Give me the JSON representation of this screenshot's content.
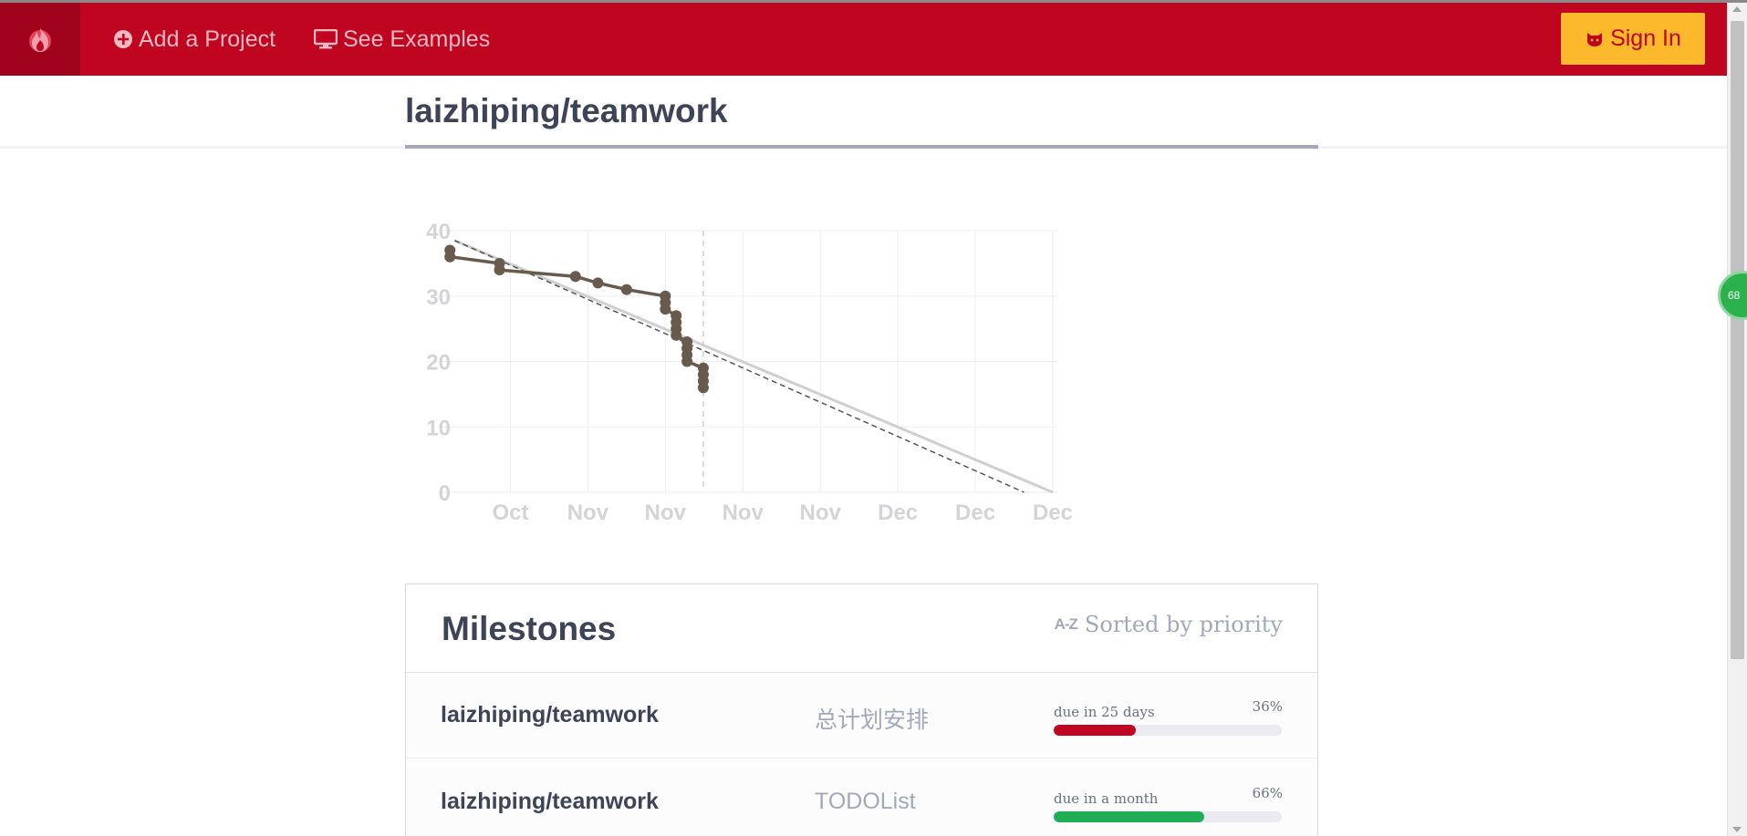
{
  "header": {
    "logo_icon": "flame-icon",
    "add_project_label": "Add a Project",
    "add_project_icon": "plus-circle-icon",
    "see_examples_label": "See Examples",
    "see_examples_icon": "monitor-icon",
    "sign_in_label": "Sign In",
    "sign_in_icon": "github-octocat-icon",
    "colors": {
      "bar": "#c00520",
      "logo_box": "#a0031b",
      "sign_in": "#fdb92c"
    }
  },
  "floating_badge": {
    "label": "68",
    "color": "#2bb24c"
  },
  "page_title": "laizhiping/teamwork",
  "chart_data": {
    "type": "line",
    "title": "",
    "xlabel": "",
    "ylabel": "",
    "ylim": [
      0,
      40
    ],
    "yticks": [
      0,
      10,
      20,
      30,
      40
    ],
    "xlim": [
      -0.7,
      7.0
    ],
    "xticks": [
      {
        "x": 0,
        "label": "Oct"
      },
      {
        "x": 1,
        "label": "Nov"
      },
      {
        "x": 2,
        "label": "Nov"
      },
      {
        "x": 3,
        "label": "Nov"
      },
      {
        "x": 4,
        "label": "Nov"
      },
      {
        "x": 5,
        "label": "Dec"
      },
      {
        "x": 6,
        "label": "Dec"
      },
      {
        "x": 7,
        "label": "Dec"
      }
    ],
    "grid": true,
    "today_x": 2.49,
    "series": [
      {
        "role": "actual",
        "color": "#685a4c",
        "points": [
          [
            -0.78,
            37
          ],
          [
            -0.78,
            36
          ],
          [
            -0.14,
            35
          ],
          [
            -0.14,
            34
          ],
          [
            0.84,
            33
          ],
          [
            1.13,
            32
          ],
          [
            1.5,
            31
          ],
          [
            2.0,
            30
          ],
          [
            2.0,
            29
          ],
          [
            2.0,
            28
          ],
          [
            2.14,
            27
          ],
          [
            2.14,
            26
          ],
          [
            2.14,
            25
          ],
          [
            2.14,
            24
          ],
          [
            2.28,
            23
          ],
          [
            2.28,
            22
          ],
          [
            2.28,
            21
          ],
          [
            2.28,
            20
          ],
          [
            2.49,
            19
          ],
          [
            2.49,
            18
          ],
          [
            2.49,
            17
          ],
          [
            2.49,
            16
          ]
        ]
      },
      {
        "role": "ideal",
        "color": "#cfcfcf",
        "points": [
          [
            -0.72,
            38.5
          ],
          [
            7.0,
            0
          ]
        ]
      },
      {
        "role": "projection",
        "color": "#555555",
        "dashed": true,
        "points": [
          [
            -0.72,
            38.5
          ],
          [
            6.63,
            0
          ]
        ]
      }
    ]
  },
  "milestones": {
    "title": "Milestones",
    "sort_icon": "a-z-sort-icon",
    "sort_icon_text": "A-Z",
    "sort_label": "Sorted by priority",
    "rows": [
      {
        "owner": "laizhiping/teamwork",
        "name": "总计划安排",
        "due": "due in 25 days",
        "percent_label": "36%",
        "progress": 0.36,
        "color": "#c00520"
      },
      {
        "owner": "laizhiping/teamwork",
        "name": "TODOList",
        "due": "due in a month",
        "percent_label": "66%",
        "progress": 0.66,
        "color": "#1fae55"
      }
    ]
  }
}
